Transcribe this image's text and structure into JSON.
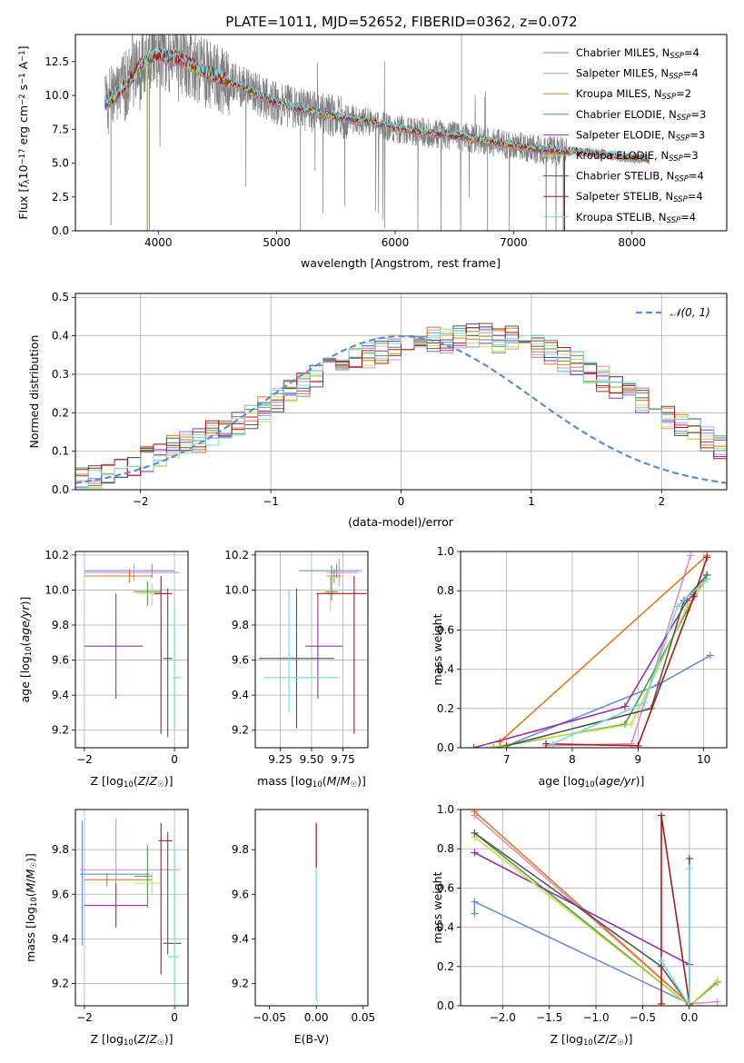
{
  "figure": {
    "title": "PLATE=1011, MJD=52652, FIBERID=0362, z=0.072"
  },
  "legend": {
    "spectrum": [
      "Chabrier MILES, N_SSP=4",
      "Salpeter MILES, N_SSP=4",
      "Kroupa MILES, N_SSP=2",
      "Chabrier ELODIE, N_SSP=3",
      "Salpeter ELODIE, N_SSP=3",
      "Kroupa ELODIE, N_SSP=3",
      "Chabrier STELIB, N_SSP=4",
      "Salpeter STELIB, N_SSP=4",
      "Kroupa STELIB, N_SSP=4"
    ],
    "normal": "𝒩(0, 1)"
  },
  "colors": {
    "models": [
      "#6a8fd8",
      "#e48bc0",
      "#e07a1e",
      "#4e9e4e",
      "#9a2fb0",
      "#c8e04c",
      "#555555",
      "#b01818",
      "#78d6dc"
    ],
    "data": "#808080",
    "normal": "#5b8ed8",
    "grid": "#b0b0b0"
  },
  "chart_data": [
    {
      "id": "spectrum",
      "type": "line",
      "title": "PLATE=1011, MJD=52652, FIBERID=0362, z=0.072",
      "xlabel": "wavelength [Angstrom, rest frame]",
      "ylabel": "Flux [f_λ 10^-17 erg cm^-2 s^-1 A^-1]",
      "xlim": [
        3300,
        8800
      ],
      "ylim": [
        0,
        14.5
      ],
      "xticks": [
        4000,
        5000,
        6000,
        7000,
        8000
      ],
      "yticks": [
        0.0,
        2.5,
        5.0,
        7.5,
        10.0,
        12.5
      ],
      "ytick_labels": [
        "0.0",
        "2.5",
        "5.0",
        "7.5",
        "10.0",
        "12.5"
      ],
      "grid": false,
      "legend_position": "top-right",
      "continuum": {
        "x": [
          3550,
          3700,
          3800,
          3900,
          4000,
          4200,
          4400,
          4600,
          4800,
          5000,
          5200,
          5400,
          5600,
          5800,
          6000,
          6200,
          6400,
          6600,
          6800,
          7000,
          7200,
          7400,
          7600,
          7800,
          8000,
          8150
        ],
        "y": [
          9.4,
          10.5,
          11.5,
          12.8,
          13.0,
          12.6,
          11.7,
          11.0,
          10.2,
          9.4,
          9.0,
          8.6,
          8.3,
          8.0,
          7.6,
          7.3,
          7.1,
          6.9,
          6.6,
          6.3,
          6.0,
          5.9,
          5.8,
          5.6,
          5.4,
          5.3
        ]
      },
      "data_range": [
        3550,
        7450
      ]
    },
    {
      "id": "residuals",
      "type": "histogram",
      "xlabel": "(data-model)/error",
      "ylabel": "Normed distribution",
      "xlim": [
        -2.5,
        2.5
      ],
      "ylim": [
        0,
        0.51
      ],
      "xticks": [
        -2,
        -1,
        0,
        1,
        2
      ],
      "xtick_labels": [
        "−2",
        "−1",
        "0",
        "1",
        "2"
      ],
      "yticks": [
        0.0,
        0.1,
        0.2,
        0.3,
        0.4,
        0.5
      ],
      "ytick_labels": [
        "0.0",
        "0.1",
        "0.2",
        "0.3",
        "0.4",
        "0.5"
      ],
      "grid": true,
      "legend_position": "top-right",
      "bin_width": 0.1,
      "base_distribution": [
        0.03,
        0.03,
        0.04,
        0.05,
        0.07,
        0.08,
        0.09,
        0.11,
        0.12,
        0.13,
        0.15,
        0.16,
        0.17,
        0.19,
        0.21,
        0.23,
        0.25,
        0.27,
        0.29,
        0.31,
        0.32,
        0.34,
        0.35,
        0.36,
        0.37,
        0.38,
        0.38,
        0.39,
        0.39,
        0.4,
        0.4,
        0.4,
        0.39,
        0.39,
        0.38,
        0.37,
        0.36,
        0.34,
        0.33,
        0.31,
        0.29,
        0.27,
        0.25,
        0.23,
        0.21,
        0.19,
        0.17,
        0.15,
        0.13,
        0.11,
        0.1,
        0.09,
        0.08,
        0.07,
        0.06,
        0.05,
        0.04,
        0.04,
        0.03,
        0.03
      ]
    },
    {
      "id": "age-vs-Z",
      "type": "errorbar",
      "xlabel": "Z [log10(Z/Z☉)]",
      "ylabel": "age  [log10(age/yr)]",
      "xlim": [
        -2.2,
        0.3
      ],
      "ylim": [
        9.1,
        10.22
      ],
      "xticks": [
        -2,
        0
      ],
      "xtick_labels": [
        "−2",
        "0"
      ],
      "yticks": [
        9.2,
        9.4,
        9.6,
        9.8,
        10.0,
        10.2
      ],
      "ytick_labels": [
        "9.2",
        "9.4",
        "9.6",
        "9.8",
        "10.0",
        "10.2"
      ],
      "grid": true,
      "points": [
        {
          "x": -0.5,
          "xerr": [
            1.5,
            0.5
          ],
          "y": 10.11,
          "yerr": [
            0.04,
            0.04
          ]
        },
        {
          "x": -0.9,
          "xerr": [
            1.1,
            1.0
          ],
          "y": 10.1,
          "yerr": [
            0.05,
            0.05
          ]
        },
        {
          "x": -1.0,
          "xerr": [
            1.0,
            0.5
          ],
          "y": 10.08,
          "yerr": [
            0.04,
            0.04
          ]
        },
        {
          "x": -0.6,
          "xerr": [
            0.3,
            0.3
          ],
          "y": 9.99,
          "yerr": [
            0.08,
            0.06
          ]
        },
        {
          "x": -1.3,
          "xerr": [
            0.7,
            0.6
          ],
          "y": 9.68,
          "yerr": [
            0.3,
            0.3
          ]
        },
        {
          "x": -0.5,
          "xerr": [
            0.3,
            0.3
          ],
          "y": 9.98,
          "yerr": [
            0.07,
            0.06
          ]
        },
        {
          "x": -0.15,
          "xerr": [
            0.1,
            0.1
          ],
          "y": 9.61,
          "yerr": [
            0.45,
            0.4
          ]
        },
        {
          "x": -0.3,
          "xerr": [
            0.15,
            0.25
          ],
          "y": 9.98,
          "yerr": [
            0.8,
            0.1
          ]
        },
        {
          "x": 0.0,
          "xerr": [
            0.05,
            0.15
          ],
          "y": 9.5,
          "yerr": [
            0.3,
            0.4
          ]
        }
      ]
    },
    {
      "id": "age-vs-mass",
      "type": "errorbar",
      "xlabel": "mass [log10(M/M☉)]",
      "ylabel": "",
      "xlim": [
        9.05,
        9.95
      ],
      "ylim": [
        9.1,
        10.22
      ],
      "xticks": [
        9.25,
        9.5,
        9.75
      ],
      "xtick_labels": [
        "9.25",
        "9.50",
        "9.75"
      ],
      "yticks": [
        9.2,
        9.4,
        9.6,
        9.8,
        10.0,
        10.2
      ],
      "ytick_labels": [
        "9.2",
        "9.4",
        "9.6",
        "9.8",
        "10.0",
        "10.2"
      ],
      "grid": true,
      "points": [
        {
          "x": 9.7,
          "xerr": [
            0.3,
            0.2
          ],
          "y": 10.11,
          "yerr": [
            0.04,
            0.04
          ]
        },
        {
          "x": 9.72,
          "xerr": [
            0.1,
            0.15
          ],
          "y": 10.1,
          "yerr": [
            0.08,
            0.08
          ]
        },
        {
          "x": 9.68,
          "xerr": [
            0.06,
            0.06
          ],
          "y": 10.08,
          "yerr": [
            0.04,
            0.04
          ]
        },
        {
          "x": 9.66,
          "xerr": [
            0.05,
            0.05
          ],
          "y": 9.99,
          "yerr": [
            0.05,
            0.15
          ]
        },
        {
          "x": 9.55,
          "xerr": [
            0.1,
            0.2
          ],
          "y": 9.68,
          "yerr": [
            0.3,
            0.3
          ]
        },
        {
          "x": 9.65,
          "xerr": [
            0.05,
            0.05
          ],
          "y": 9.98,
          "yerr": [
            0.1,
            0.1
          ]
        },
        {
          "x": 9.38,
          "xerr": [
            0.3,
            0.3
          ],
          "y": 9.61,
          "yerr": [
            0.4,
            0.4
          ]
        },
        {
          "x": 9.84,
          "xerr": [
            0.3,
            0.1
          ],
          "y": 9.98,
          "yerr": [
            0.8,
            0.1
          ]
        },
        {
          "x": 9.32,
          "xerr": [
            0.2,
            0.4
          ],
          "y": 9.5,
          "yerr": [
            0.2,
            0.5
          ]
        }
      ]
    },
    {
      "id": "weight-vs-age",
      "type": "line",
      "xlabel": "age  [log10(age/yr)]",
      "ylabel": "mass weight",
      "xlim": [
        6.3,
        10.35
      ],
      "ylim": [
        0,
        1
      ],
      "xticks": [
        7,
        8,
        9,
        10
      ],
      "xtick_labels": [
        "7",
        "8",
        "9",
        "10"
      ],
      "yticks": [
        0.0,
        0.2,
        0.4,
        0.6,
        0.8,
        1.0
      ],
      "ytick_labels": [
        "0.0",
        "0.2",
        "0.4",
        "0.6",
        "0.8",
        "1.0"
      ],
      "grid": true,
      "series": [
        {
          "x": [
            7.0,
            9.3,
            10.1
          ],
          "y": [
            0.01,
            0.32,
            0.47
          ]
        },
        {
          "x": [
            7.6,
            8.9,
            9.8
          ],
          "y": [
            0.01,
            0.02,
            0.98
          ]
        },
        {
          "x": [
            6.9,
            10.05
          ],
          "y": [
            0.03,
            0.98
          ]
        },
        {
          "x": [
            6.8,
            8.8,
            9.75,
            10.05
          ],
          "y": [
            0.0,
            0.12,
            0.7,
            0.88
          ]
        },
        {
          "x": [
            6.5,
            8.8,
            9.75,
            9.85
          ],
          "y": [
            0.0,
            0.21,
            0.75,
            0.78
          ]
        },
        {
          "x": [
            6.7,
            8.9,
            9.75,
            10.05
          ],
          "y": [
            0.0,
            0.12,
            0.72,
            0.86
          ]
        },
        {
          "x": [
            7.0,
            9.2,
            9.7,
            10.05
          ],
          "y": [
            0.01,
            0.2,
            0.75,
            0.88
          ]
        },
        {
          "x": [
            7.6,
            9.0,
            9.85,
            10.05
          ],
          "y": [
            0.02,
            0.01,
            0.77,
            0.97
          ]
        },
        {
          "x": [
            7.7,
            9.1,
            9.6,
            10.05
          ],
          "y": [
            0.02,
            0.23,
            0.72,
            0.86
          ]
        }
      ]
    },
    {
      "id": "mass-vs-Z",
      "type": "errorbar",
      "xlabel": "Z [log10(Z/Z☉)]",
      "ylabel": "mass [log10(M/M☉)]",
      "xlim": [
        -2.2,
        0.3
      ],
      "ylim": [
        9.1,
        9.98
      ],
      "xticks": [
        -2,
        0
      ],
      "xtick_labels": [
        "−2",
        "0"
      ],
      "yticks": [
        9.2,
        9.4,
        9.6,
        9.8
      ],
      "ytick_labels": [
        "9.2",
        "9.4",
        "9.6",
        "9.8"
      ],
      "grid": true,
      "points": [
        {
          "x": -2.05,
          "xerr": [
            0.05,
            1.5
          ],
          "y": 9.69,
          "yerr": [
            0.32,
            0.24
          ]
        },
        {
          "x": -1.3,
          "xerr": [
            0.8,
            1.4
          ],
          "y": 9.71,
          "yerr": [
            0.25,
            0.23
          ]
        },
        {
          "x": -1.5,
          "xerr": [
            0.5,
            1.0
          ],
          "y": 9.665,
          "yerr": [
            0.03,
            0.03
          ]
        },
        {
          "x": -0.6,
          "xerr": [
            0.3,
            0.1
          ],
          "y": 9.68,
          "yerr": [
            0.14,
            0.14
          ]
        },
        {
          "x": -1.3,
          "xerr": [
            0.7,
            0.7
          ],
          "y": 9.55,
          "yerr": [
            0.1,
            0.1
          ]
        },
        {
          "x": -0.5,
          "xerr": [
            0.4,
            0.2
          ],
          "y": 9.65,
          "yerr": [
            0.05,
            0.05
          ]
        },
        {
          "x": -0.15,
          "xerr": [
            0.1,
            0.3
          ],
          "y": 9.38,
          "yerr": [
            0.05,
            0.5
          ]
        },
        {
          "x": -0.3,
          "xerr": [
            0.05,
            0.25
          ],
          "y": 9.84,
          "yerr": [
            0.6,
            0.08
          ]
        },
        {
          "x": 0.0,
          "xerr": [
            0.15,
            0.1
          ],
          "y": 9.32,
          "yerr": [
            0.2,
            0.5
          ]
        }
      ]
    },
    {
      "id": "mass-vs-EBV",
      "type": "errorbar",
      "xlabel": "E(B-V)",
      "ylabel": "",
      "xlim": [
        -0.065,
        0.055
      ],
      "ylim": [
        9.1,
        9.98
      ],
      "xticks": [
        -0.05,
        0.0,
        0.05
      ],
      "xtick_labels": [
        "−0.05",
        "0.00",
        "0.05"
      ],
      "yticks": [
        9.2,
        9.4,
        9.6,
        9.8
      ],
      "ytick_labels": [
        "9.2",
        "9.4",
        "9.6",
        "9.8"
      ],
      "grid": false,
      "points": [
        {
          "x": 0.0,
          "xerr": [
            0,
            0
          ],
          "y": 9.62,
          "yerr": [
            0.5,
            0.3
          ]
        },
        {
          "x": 0.0,
          "xerr": [
            0,
            0
          ],
          "y": 9.82,
          "yerr": [
            0.1,
            0.1
          ]
        }
      ]
    },
    {
      "id": "weight-vs-Z",
      "type": "line",
      "xlabel": "Z [log10(Z/Z☉)]",
      "ylabel": "mass weight",
      "xlim": [
        -2.45,
        0.4
      ],
      "ylim": [
        0,
        1
      ],
      "xticks": [
        -2.0,
        -1.5,
        -1.0,
        -0.5,
        0.0
      ],
      "xtick_labels": [
        "−2.0",
        "−1.5",
        "−1.0",
        "−0.5",
        "0.0"
      ],
      "yticks": [
        0.0,
        0.2,
        0.4,
        0.6,
        0.8,
        1.0
      ],
      "ytick_labels": [
        "0.0",
        "0.2",
        "0.4",
        "0.6",
        "0.8",
        "1.0"
      ],
      "grid": true,
      "series": [
        {
          "x": [
            -2.3,
            -2.3,
            0.0
          ],
          "y": [
            0.47,
            0.53,
            0.01
          ]
        },
        {
          "x": [
            -2.3,
            0.0,
            0.3
          ],
          "y": [
            0.97,
            0.01,
            0.02
          ]
        },
        {
          "x": [
            -2.3,
            0.0
          ],
          "y": [
            0.99,
            0.01
          ]
        },
        {
          "x": [
            -2.3,
            0.0,
            0.3
          ],
          "y": [
            0.88,
            0.0,
            0.12
          ]
        },
        {
          "x": [
            -2.3,
            0.0
          ],
          "y": [
            0.78,
            0.21
          ]
        },
        {
          "x": [
            -2.3,
            0.0,
            0.3
          ],
          "y": [
            0.86,
            0.0,
            0.13
          ]
        },
        {
          "x": [
            -2.3,
            -0.3,
            0.0,
            0.0
          ],
          "y": [
            0.88,
            0.2,
            0.0,
            0.75
          ]
        },
        {
          "x": [
            -0.3,
            -0.3,
            0.0
          ],
          "y": [
            0.01,
            0.97,
            0.01
          ]
        },
        {
          "x": [
            -0.3,
            0.0,
            0.0
          ],
          "y": [
            0.23,
            0.0,
            0.7
          ]
        }
      ]
    }
  ]
}
